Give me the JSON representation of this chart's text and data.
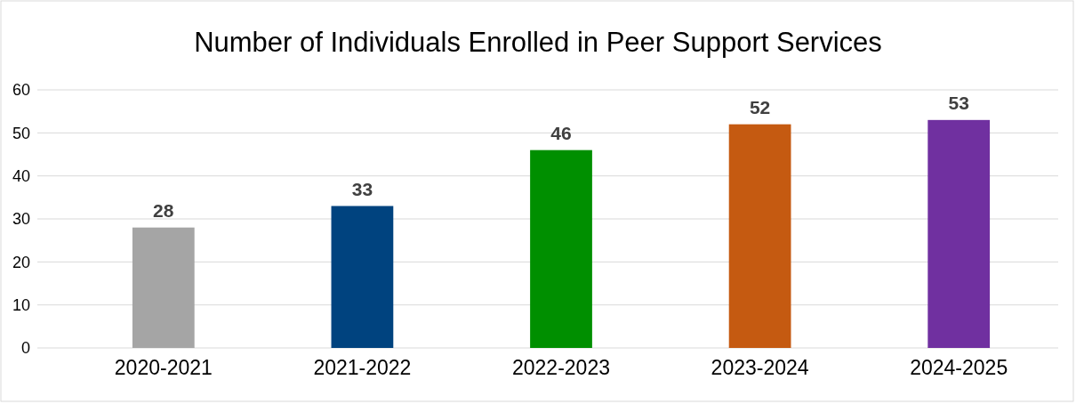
{
  "chart_data": {
    "type": "bar",
    "title": "Number of Individuals Enrolled in Peer Support Services",
    "categories": [
      "2020-2021",
      "2021-2022",
      "2022-2023",
      "2023-2024",
      "2024-2025"
    ],
    "values": [
      28,
      33,
      46,
      52,
      53
    ],
    "colors": [
      "#a5a5a5",
      "#00437f",
      "#008f00",
      "#c55a11",
      "#7030a0"
    ],
    "ylim": [
      0,
      60
    ],
    "yticks": [
      0,
      10,
      20,
      30,
      40,
      50,
      60
    ],
    "grid": "y",
    "data_labels": true
  }
}
